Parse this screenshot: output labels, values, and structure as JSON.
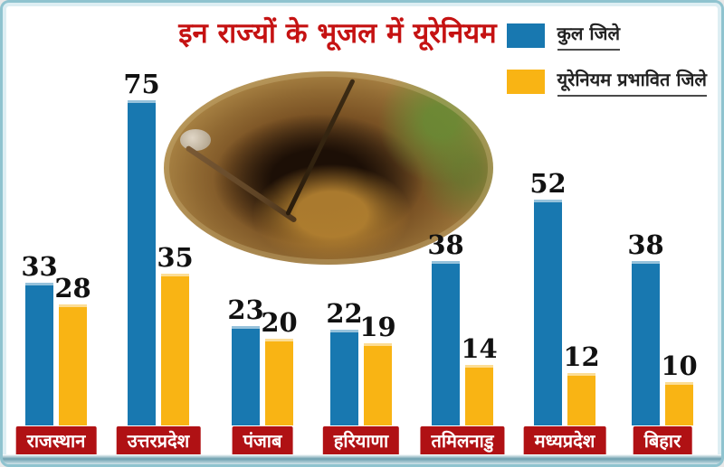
{
  "title": "इन राज्यों के भूजल में यूरेनियम",
  "legend": {
    "items": [
      {
        "label": "कुल जिले",
        "color": "#1878b0"
      },
      {
        "label": "यूरेनियम प्रभावित जिले",
        "color": "#f9b414"
      }
    ]
  },
  "colors": {
    "total_bar": "#1878b0",
    "affected_bar": "#f9b414",
    "state_box": "#b01114",
    "title_text": "#c51212",
    "card_border": "#8fc3cf"
  },
  "images": {
    "center_photo": "dug-well-photo"
  },
  "chart_data": {
    "type": "bar",
    "title": "इन राज्यों के भूजल में यूरेनियम",
    "categories": [
      "राजस्थान",
      "उत्तरप्रदेश",
      "पंजाब",
      "हरियाणा",
      "तमिलनाडु",
      "मध्यप्रदेश",
      "बिहार"
    ],
    "series": [
      {
        "name": "कुल जिले",
        "color": "#1878b0",
        "values": [
          33,
          75,
          23,
          22,
          38,
          52,
          38
        ]
      },
      {
        "name": "यूरेनियम प्रभावित जिले",
        "color": "#f9b414",
        "values": [
          28,
          35,
          20,
          19,
          14,
          12,
          10
        ]
      }
    ],
    "xlabel": "",
    "ylabel": "",
    "ylim": [
      0,
      80
    ],
    "grid": false,
    "legend_position": "top-right",
    "value_labels": true
  }
}
